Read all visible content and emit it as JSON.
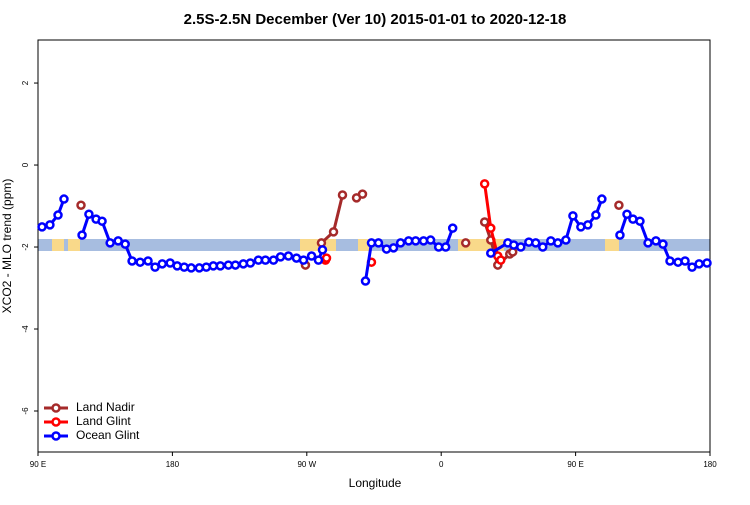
{
  "chart_data": {
    "type": "line",
    "title": "2.5S-2.5N December (Ver 10)   2015-01-01 to 2020-12-18",
    "xlabel": "Longitude",
    "ylabel": "XCO2 - MLO trend (ppm)",
    "xlim": [
      90,
      540
    ],
    "ylim": [
      -7,
      3.05
    ],
    "xticks": [
      {
        "value": 90,
        "label": "90 E"
      },
      180,
      {
        "value": 270,
        "label": "90 W"
      },
      {
        "value": 360,
        "label": "0"
      },
      {
        "value": 450,
        "label": "90 E"
      },
      {
        "value": 540,
        "label": "180"
      }
    ],
    "yticks": [
      -6,
      -4,
      -2,
      0,
      2
    ],
    "legend": "bottom-left",
    "series": [
      {
        "name": "Land Nadir",
        "color": "#a52a2a",
        "x": [
          118.8,
          null,
          269.1,
          null,
          279.8,
          287.9,
          293.9,
          null,
          303.3,
          307.3,
          null,
          376.4,
          null,
          389.1,
          393.2,
          397.9,
          405.9,
          407.9,
          null,
          479.0
        ],
        "values": [
          -0.98,
          null,
          -2.44,
          null,
          -1.9,
          -1.63,
          -0.73,
          null,
          -0.8,
          -0.71,
          null,
          -1.9,
          null,
          -1.39,
          -1.83,
          -2.44,
          -2.17,
          -2.12,
          null,
          -0.98
        ]
      },
      {
        "name": "Land Glint",
        "color": "#ff0000",
        "x": [
          282.5,
          283.2,
          null,
          313.3,
          null,
          389.1,
          393.2,
          397.9,
          399.9
        ],
        "values": [
          -2.32,
          -2.27,
          null,
          -2.37,
          null,
          -0.46,
          -1.54,
          -2.22,
          -2.32
        ]
      },
      {
        "name": "Ocean Glint",
        "color": "#0000ff",
        "x": [
          92.7,
          98.0,
          103.4,
          107.4,
          null,
          119.5,
          124.1,
          128.9,
          132.9,
          138.3,
          143.7,
          148.4,
          153.0,
          158.4,
          163.7,
          168.4,
          173.2,
          178.5,
          183.2,
          187.9,
          192.6,
          198.0,
          202.7,
          207.4,
          212.1,
          217.5,
          222.2,
          227.5,
          232.2,
          237.6,
          242.3,
          247.7,
          252.4,
          257.7,
          263.1,
          267.8,
          273.2,
          277.8,
          280.5,
          null,
          309.3,
          313.3,
          318.0,
          323.4,
          328.1,
          332.8,
          338.2,
          342.9,
          348.2,
          352.9,
          358.3,
          363.0,
          367.7,
          null,
          393.2,
          404.6,
          408.6,
          413.3,
          418.7,
          423.3,
          428.0,
          433.4,
          438.1,
          443.5,
          448.2,
          453.5,
          458.2,
          463.6,
          467.6,
          null,
          479.7,
          484.4,
          488.4,
          493.1,
          498.5,
          503.8,
          508.5,
          513.2,
          518.6,
          523.3,
          528.0,
          532.7,
          538.0
        ],
        "values": [
          -1.51,
          -1.46,
          -1.22,
          -0.83,
          null,
          -1.71,
          -1.2,
          -1.32,
          -1.37,
          -1.9,
          -1.85,
          -1.93,
          -2.34,
          -2.37,
          -2.34,
          -2.49,
          -2.41,
          -2.39,
          -2.46,
          -2.49,
          -2.51,
          -2.51,
          -2.49,
          -2.46,
          -2.46,
          -2.44,
          -2.44,
          -2.41,
          -2.39,
          -2.32,
          -2.32,
          -2.32,
          -2.24,
          -2.22,
          -2.27,
          -2.32,
          -2.22,
          -2.32,
          -2.07,
          null,
          -2.83,
          -1.9,
          -1.9,
          -2.05,
          -2.02,
          -1.9,
          -1.85,
          -1.85,
          -1.85,
          -1.83,
          -2.0,
          -2.0,
          -1.54,
          null,
          -2.15,
          -1.9,
          -1.95,
          -2.0,
          -1.88,
          -1.9,
          -2.0,
          -1.85,
          -1.9,
          -1.83,
          -1.24,
          -1.51,
          -1.46,
          -1.22,
          -0.83,
          null,
          -1.71,
          -1.2,
          -1.32,
          -1.37,
          -1.9,
          -1.85,
          -1.93,
          -2.34,
          -2.37,
          -2.34,
          -2.49,
          -2.41,
          -2.39
        ]
      }
    ]
  }
}
